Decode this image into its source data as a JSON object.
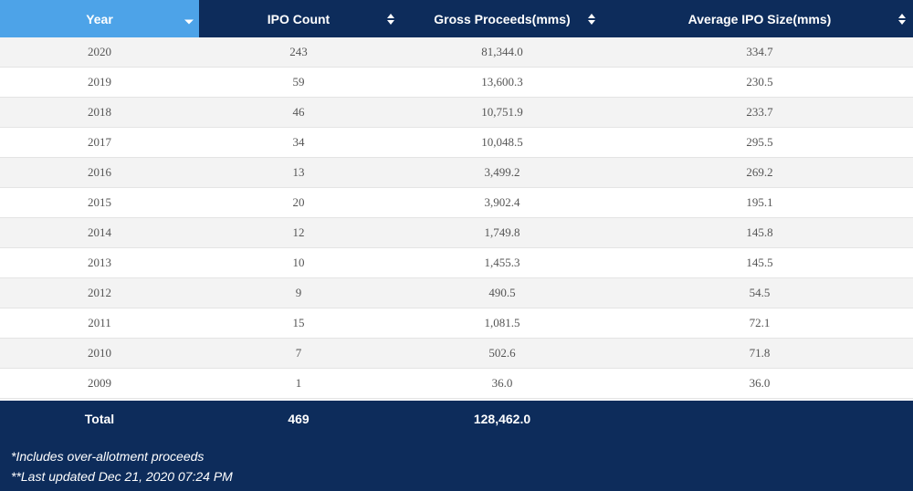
{
  "header": {
    "year": "Year",
    "ipo_count": "IPO Count",
    "gross_proceeds": "Gross Proceeds(mms)",
    "avg_ipo_size": "Average IPO Size(mms)"
  },
  "rows": [
    {
      "year": "2020",
      "count": "243",
      "gross": "81,344.0",
      "avg": "334.7"
    },
    {
      "year": "2019",
      "count": "59",
      "gross": "13,600.3",
      "avg": "230.5"
    },
    {
      "year": "2018",
      "count": "46",
      "gross": "10,751.9",
      "avg": "233.7"
    },
    {
      "year": "2017",
      "count": "34",
      "gross": "10,048.5",
      "avg": "295.5"
    },
    {
      "year": "2016",
      "count": "13",
      "gross": "3,499.2",
      "avg": "269.2"
    },
    {
      "year": "2015",
      "count": "20",
      "gross": "3,902.4",
      "avg": "195.1"
    },
    {
      "year": "2014",
      "count": "12",
      "gross": "1,749.8",
      "avg": "145.8"
    },
    {
      "year": "2013",
      "count": "10",
      "gross": "1,455.3",
      "avg": "145.5"
    },
    {
      "year": "2012",
      "count": "9",
      "gross": "490.5",
      "avg": "54.5"
    },
    {
      "year": "2011",
      "count": "15",
      "gross": "1,081.5",
      "avg": "72.1"
    },
    {
      "year": "2010",
      "count": "7",
      "gross": "502.6",
      "avg": "71.8"
    },
    {
      "year": "2009",
      "count": "1",
      "gross": "36.0",
      "avg": "36.0"
    }
  ],
  "footer": {
    "total_label": "Total",
    "total_count": "469",
    "total_gross": "128,462.0",
    "note_1": "*Includes over-allotment proceeds",
    "note_2": "**Last updated Dec 21, 2020 07:24 PM"
  },
  "colors": {
    "header_bg": "#0d2c5b",
    "active_header_bg": "#4da3e8",
    "row_alt_bg": "#f3f3f3",
    "row_bg": "#ffffff",
    "footer_bg": "#0d2c5b"
  },
  "icons": {
    "year_sort": "sort-descending-icon",
    "other_sort": "sort-both-icon"
  }
}
